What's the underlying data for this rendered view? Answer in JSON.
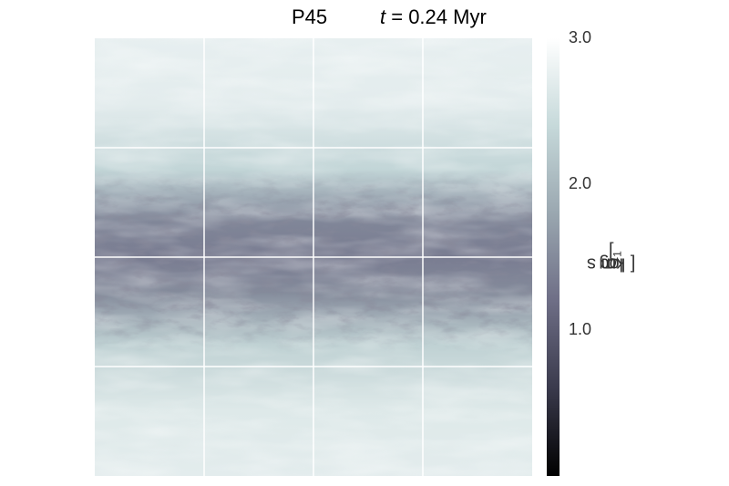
{
  "chart_data": {
    "type": "heatmap",
    "title_left": "P45",
    "title_time_symbol": "t",
    "title_time_rest": " = 0.24 Myr",
    "colorbar": {
      "label_prefix": "log ",
      "label_symbol": "σ",
      "label_units": " [ km s",
      "label_exponent": "−1",
      "label_close": " ]",
      "range": [
        0.0,
        3.0
      ],
      "ticks": [
        {
          "value": 3.0,
          "label": "3.0"
        },
        {
          "value": 2.0,
          "label": "2.0"
        },
        {
          "value": 1.0,
          "label": "1.0"
        }
      ],
      "colors": [
        "#000000",
        "#3a3a4c",
        "#6e6e86",
        "#9aa7b0",
        "#c6d9da",
        "#ffffff"
      ]
    },
    "grid": true,
    "grid_divisions": 4,
    "field_description_rows": [
      {
        "y": 0.0,
        "mean_log_sigma": 2.75
      },
      {
        "y": 0.15,
        "mean_log_sigma": 2.7
      },
      {
        "y": 0.3,
        "mean_log_sigma": 2.35
      },
      {
        "y": 0.42,
        "mean_log_sigma": 1.45
      },
      {
        "y": 0.5,
        "mean_log_sigma": 1.35
      },
      {
        "y": 0.58,
        "mean_log_sigma": 1.5
      },
      {
        "y": 0.7,
        "mean_log_sigma": 2.3
      },
      {
        "y": 0.85,
        "mean_log_sigma": 2.65
      },
      {
        "y": 1.0,
        "mean_log_sigma": 2.7
      }
    ]
  }
}
